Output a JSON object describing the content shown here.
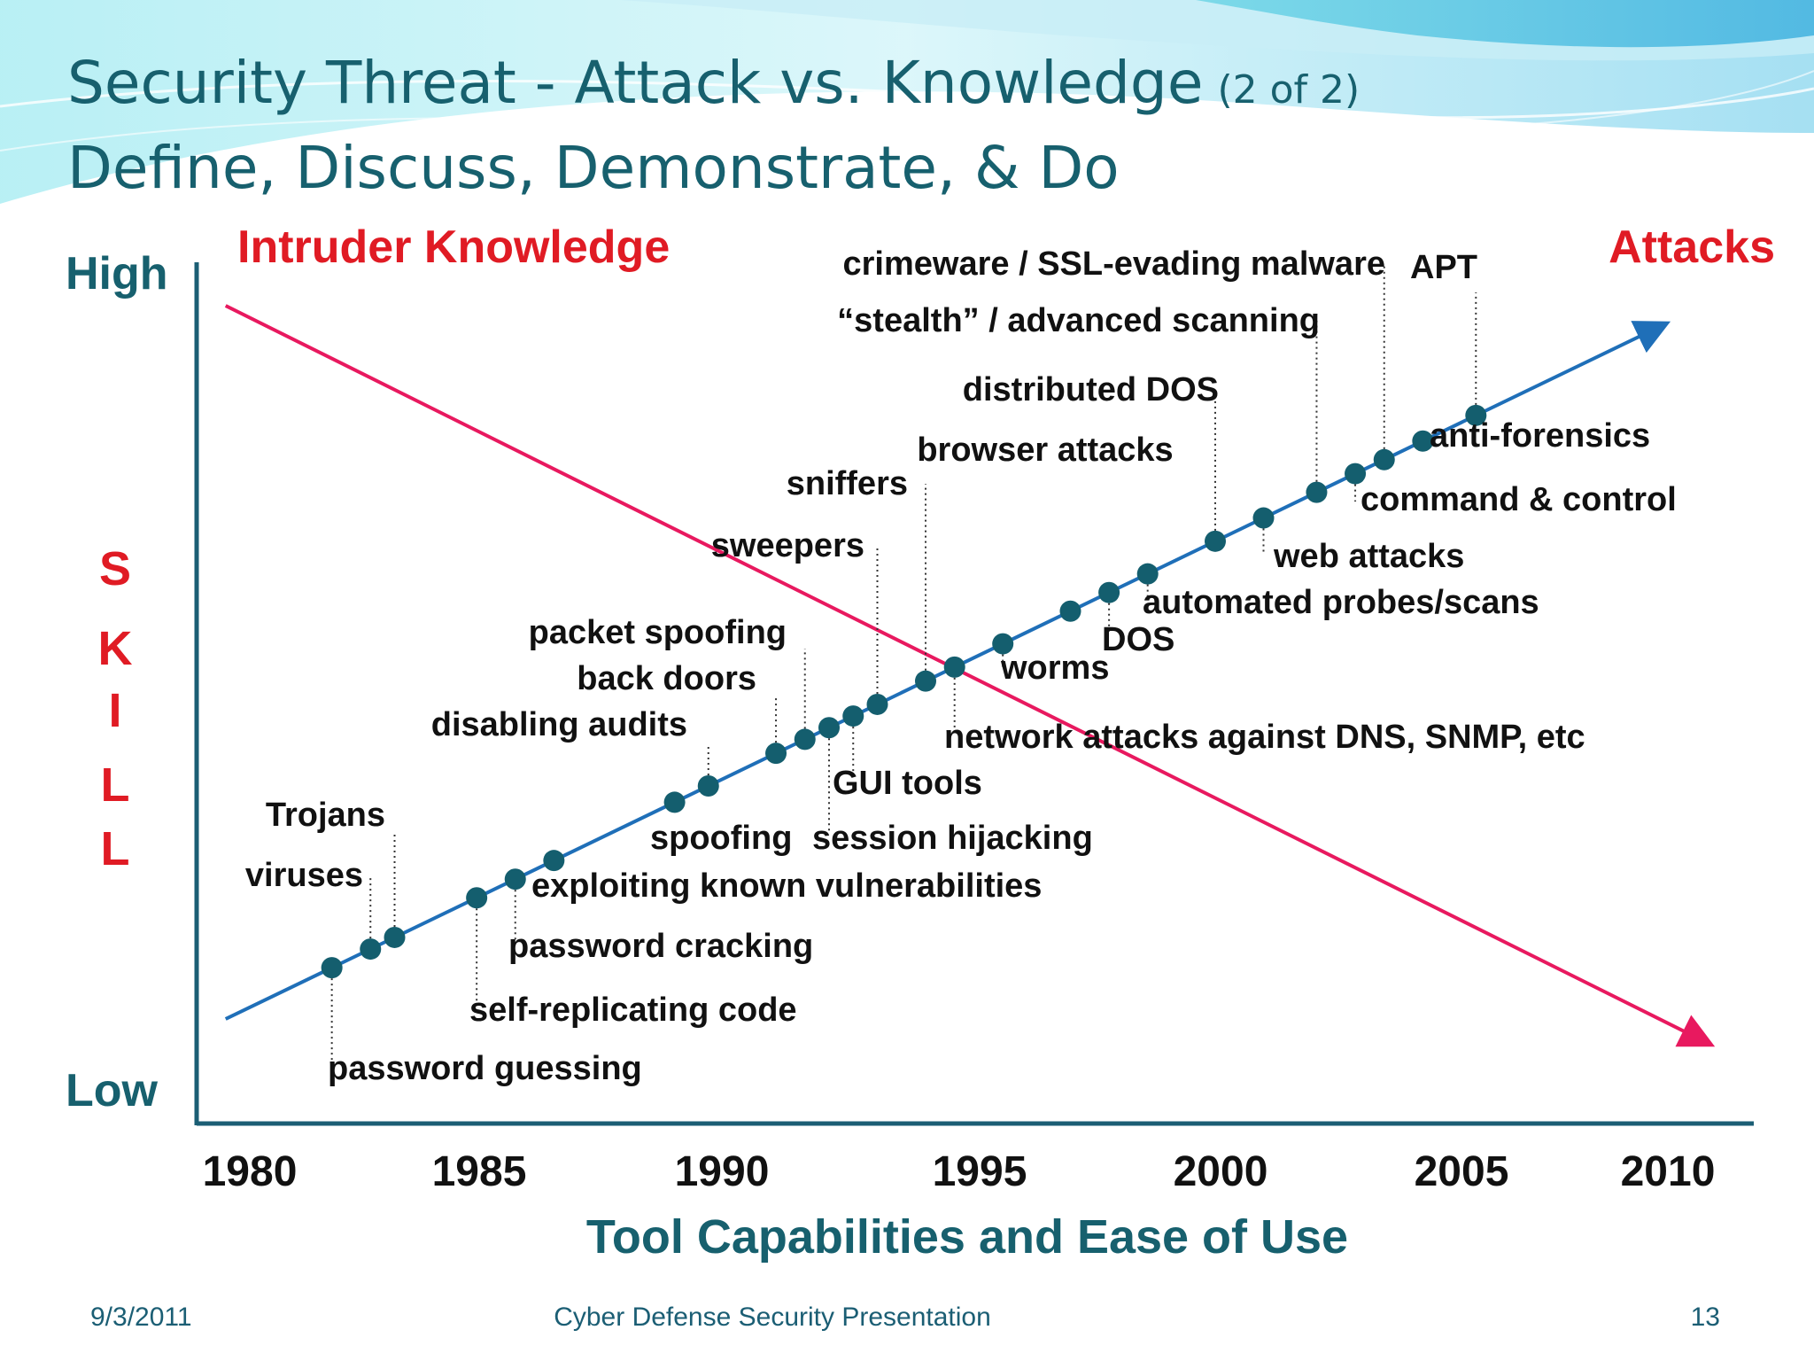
{
  "slide": {
    "title_main": "Security Threat - Attack vs. Knowledge",
    "title_suffix": "(2 of 2)",
    "subtitle": "Define, Discuss, Demonstrate, & Do",
    "footer_date": "9/3/2011",
    "footer_center": "Cyber Defense Security Presentation",
    "footer_page": "13"
  },
  "colors": {
    "title": "#17606e",
    "knowledge_line": "#e8195f",
    "attack_line": "#1f6fb8",
    "marker": "#145e6e",
    "axis": "#1b5e74",
    "red_label": "#e01b24"
  },
  "chart_data": {
    "type": "line",
    "x_ticks": [
      "1980",
      "1985",
      "1990",
      "1995",
      "2000",
      "2005",
      "2010"
    ],
    "xlabel": "Tool Capabilities and Ease of Use",
    "y_high_label": "High",
    "y_low_label": "Low",
    "ylabel_letters": [
      "S",
      "K",
      "I",
      "L",
      "L"
    ],
    "series": [
      {
        "name": "Intruder Knowledge",
        "trend": "decreasing",
        "x_range": [
          1979.5,
          2010
        ]
      },
      {
        "name": "Attacks",
        "trend": "increasing",
        "x_range": [
          1979.5,
          2009
        ]
      }
    ],
    "attacks": [
      {
        "label": "password guessing",
        "year": 1981.7
      },
      {
        "label": "viruses",
        "year": 1982.5
      },
      {
        "label": "Trojans",
        "year": 1983.0
      },
      {
        "label": "self-replicating code",
        "year": 1984.7
      },
      {
        "label": "password cracking",
        "year": 1985.5
      },
      {
        "label": "exploiting known vulnerabilities",
        "year": 1986.3
      },
      {
        "label": "spoofing",
        "year": 1988.8
      },
      {
        "label": "disabling audits",
        "year": 1989.5
      },
      {
        "label": "back doors",
        "year": 1990.9
      },
      {
        "label": "packet spoofing",
        "year": 1991.5
      },
      {
        "label": "session hijacking",
        "year": 1992.0
      },
      {
        "label": "GUI tools",
        "year": 1992.5
      },
      {
        "label": "sweepers",
        "year": 1993.0
      },
      {
        "label": "sniffers",
        "year": 1994.0
      },
      {
        "label": "network attacks against DNS, SNMP, etc",
        "year": 1994.6
      },
      {
        "label": "worms",
        "year": 1995.6
      },
      {
        "label": "browser attacks",
        "year": 1997.0
      },
      {
        "label": "DOS",
        "year": 1997.8
      },
      {
        "label": "automated probes/scans",
        "year": 1998.6
      },
      {
        "label": "distributed DOS",
        "year": 2000.0
      },
      {
        "label": "web attacks",
        "year": 2001.0
      },
      {
        "label": "“stealth” / advanced scanning",
        "year": 2002.1
      },
      {
        "label": "command & control",
        "year": 2002.9
      },
      {
        "label": "crimeware / SSL-evading malware",
        "year": 2003.5
      },
      {
        "label": "anti-forensics",
        "year": 2004.3
      },
      {
        "label": "APT",
        "year": 2005.4
      }
    ]
  }
}
